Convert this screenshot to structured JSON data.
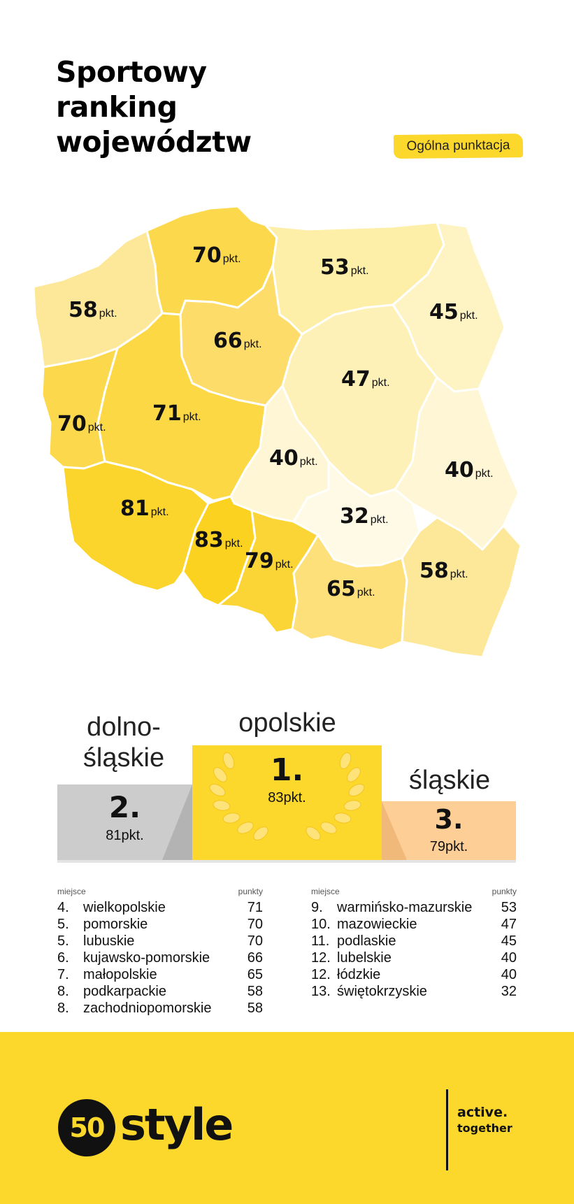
{
  "header": {
    "title_lines": [
      "Sportowy",
      "ranking",
      "województw"
    ],
    "tag": "Ogólna punktacja"
  },
  "map": {
    "unit": "pkt.",
    "regions": [
      {
        "id": "pomorskie",
        "points": 70,
        "color": "#fcd94c"
      },
      {
        "id": "warminsko-mazurskie",
        "points": 53,
        "color": "#fdeea8"
      },
      {
        "id": "zachodniopomorskie",
        "points": 58,
        "color": "#fde89a"
      },
      {
        "id": "podlaskie",
        "points": 45,
        "color": "#fef3c3"
      },
      {
        "id": "kujawsko-pomorskie",
        "points": 66,
        "color": "#fddc6a"
      },
      {
        "id": "mazowieckie",
        "points": 47,
        "color": "#fef1b8"
      },
      {
        "id": "lubuskie",
        "points": 70,
        "color": "#fcd94c"
      },
      {
        "id": "wielkopolskie",
        "points": 71,
        "color": "#fcd844"
      },
      {
        "id": "lodzkie",
        "points": 40,
        "color": "#fef6d4"
      },
      {
        "id": "lubelskie",
        "points": 40,
        "color": "#fef6d4"
      },
      {
        "id": "dolnoslaskie",
        "points": 81,
        "color": "#fbd42c"
      },
      {
        "id": "opolskie",
        "points": 83,
        "color": "#fbd21f"
      },
      {
        "id": "slaskie",
        "points": 79,
        "color": "#fbd535"
      },
      {
        "id": "swietokrzyskie",
        "points": 32,
        "color": "#fffae6"
      },
      {
        "id": "malopolskie",
        "points": 65,
        "color": "#fde07a"
      },
      {
        "id": "podkarpackie",
        "points": 58,
        "color": "#fde89a"
      }
    ]
  },
  "podium": {
    "first": {
      "name": "opolskie",
      "rank": "1.",
      "value": "83pkt.",
      "color": "#fcd72c"
    },
    "second": {
      "name": "dolno-\nśląskie",
      "rank": "2.",
      "value": "81pkt.",
      "color": "#cccccc"
    },
    "third": {
      "name": "śląskie",
      "rank": "3.",
      "value": "79pkt.",
      "color": "#fdcf96"
    }
  },
  "ranking": {
    "col_place": "miejsce",
    "col_points": "punkty",
    "left": [
      {
        "place": "4.",
        "name": "wielkopolskie",
        "points": "71"
      },
      {
        "place": "5.",
        "name": "pomorskie",
        "points": "70"
      },
      {
        "place": "5.",
        "name": "lubuskie",
        "points": "70"
      },
      {
        "place": "6.",
        "name": "kujawsko-pomorskie",
        "points": "66"
      },
      {
        "place": "7.",
        "name": "małopolskie",
        "points": "65"
      },
      {
        "place": "8.",
        "name": "podkarpackie",
        "points": "58"
      },
      {
        "place": "8.",
        "name": "zachodniopomorskie",
        "points": "58"
      }
    ],
    "right": [
      {
        "place": "9.",
        "name": "warmińsko-mazurskie",
        "points": "53"
      },
      {
        "place": "10.",
        "name": "mazowieckie",
        "points": "47"
      },
      {
        "place": "11.",
        "name": "podlaskie",
        "points": "45"
      },
      {
        "place": "12.",
        "name": "lubelskie",
        "points": "40"
      },
      {
        "place": "12.",
        "name": "łódzkie",
        "points": "40"
      },
      {
        "place": "13.",
        "name": "świętokrzyskie",
        "points": "32"
      }
    ]
  },
  "footer": {
    "logo_number": "50",
    "logo_word": "style",
    "tagline_1": "active.",
    "tagline_2": "together",
    "background": "#fcd72c"
  }
}
